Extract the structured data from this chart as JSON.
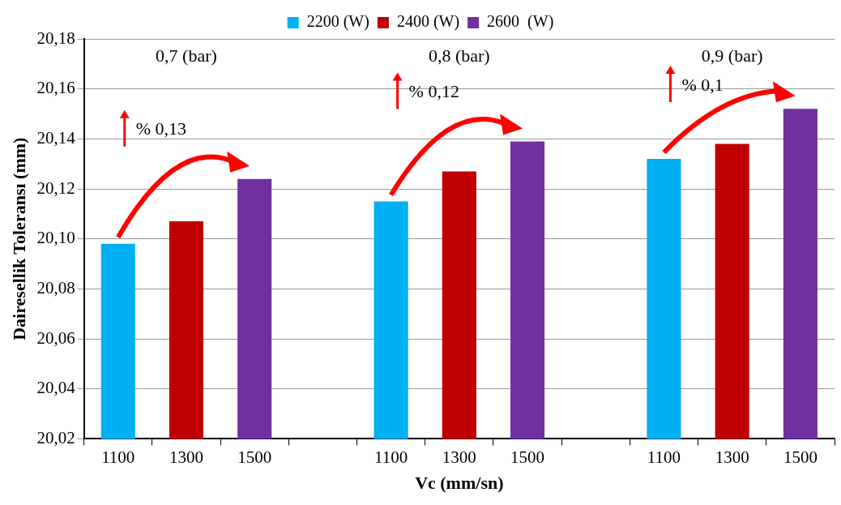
{
  "chart_data": {
    "type": "bar",
    "xlabel": "Vc (mm/sn)",
    "ylabel": "Dairesellik Toleransı (mm)",
    "categories": [
      "1100",
      "1300",
      "1500",
      null,
      "1100",
      "1300",
      "1500",
      null,
      "1100",
      "1300",
      "1500"
    ],
    "series": [
      {
        "name": "2200 (W)",
        "color": "#00b0f0",
        "values": [
          20.098,
          null,
          null,
          null,
          20.115,
          null,
          null,
          null,
          20.132,
          null,
          null
        ]
      },
      {
        "name": "2400 (W)",
        "color": "#c00000",
        "values": [
          null,
          20.107,
          null,
          null,
          null,
          20.127,
          null,
          null,
          null,
          20.138,
          null
        ]
      },
      {
        "name": "2600  (W)",
        "color": "#7030a0",
        "values": [
          null,
          null,
          20.124,
          null,
          null,
          null,
          20.139,
          null,
          null,
          null,
          20.152
        ]
      }
    ],
    "ylim": [
      20.02,
      20.18
    ],
    "yticks": [
      {
        "value": 20.02,
        "label": "20,02"
      },
      {
        "value": 20.04,
        "label": "20,04"
      },
      {
        "value": 20.06,
        "label": "20,06"
      },
      {
        "value": 20.08,
        "label": "20,08"
      },
      {
        "value": 20.1,
        "label": "20,10"
      },
      {
        "value": 20.12,
        "label": "20,12"
      },
      {
        "value": 20.14,
        "label": "20,14"
      },
      {
        "value": 20.16,
        "label": "20,16"
      },
      {
        "value": 20.18,
        "label": "20,18"
      }
    ],
    "grid": "y",
    "legend": "top",
    "annotations": [
      "0,7 (bar)",
      "0,8 (bar)",
      "0,9 (bar)",
      "% 0,13",
      "% 0,12",
      "% 0,1"
    ]
  }
}
